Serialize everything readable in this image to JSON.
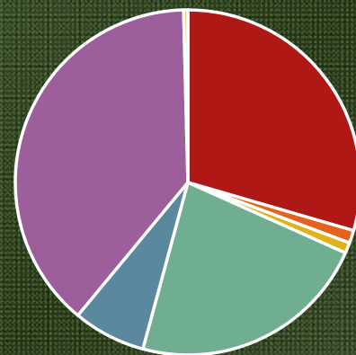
{
  "chart_data": {
    "type": "pie",
    "start_angle_deg": 90,
    "direction": "clockwise",
    "slices": [
      {
        "value": 29.5,
        "color": "#b01815"
      },
      {
        "value": 1.2,
        "color": "#e5621e"
      },
      {
        "value": 1.0,
        "color": "#e0b219"
      },
      {
        "value": 22.5,
        "color": "#6fae90"
      },
      {
        "value": 6.8,
        "color": "#5a889e"
      },
      {
        "value": 38.6,
        "color": "#9d5f9c"
      },
      {
        "value": 0.4,
        "color": "#f2c95a"
      }
    ],
    "title": "",
    "legend": "none"
  }
}
